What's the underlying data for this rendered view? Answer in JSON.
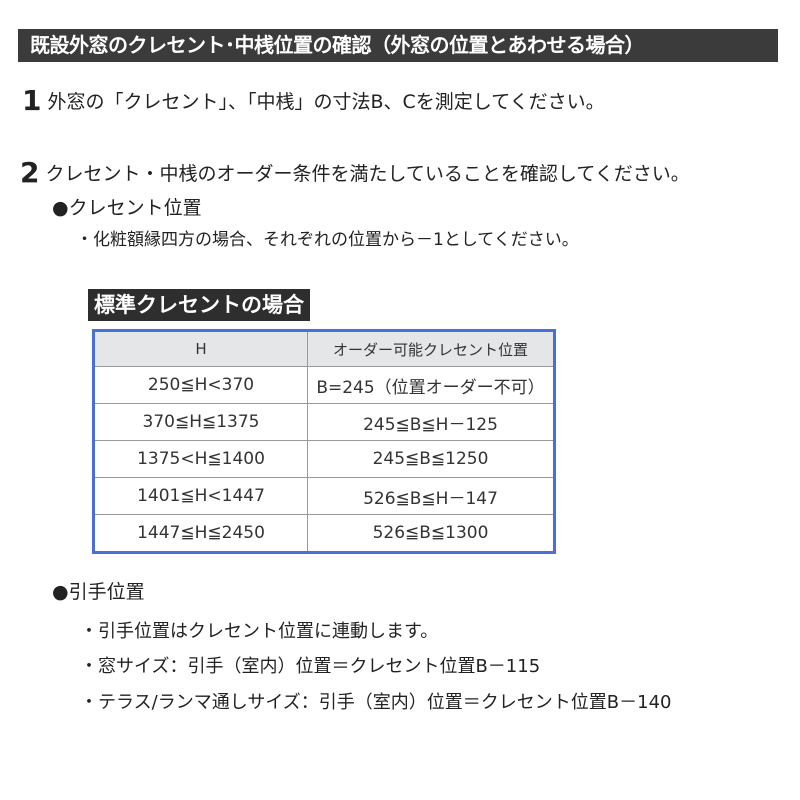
{
  "title": "既設外窓のクレセント･中桟位置の確認（外窓の位置とあわせる場合）",
  "steps": [
    {
      "number": "1",
      "text": "外窓の「クレセント」、「中桟」の寸法B、Cを測定してください。"
    },
    {
      "number": "2",
      "text": "クレセント・中桟のオーダー条件を満たしていることを確認してください。"
    }
  ],
  "crescent_section": {
    "heading": "●クレセント位置",
    "note": "・化粧額縁四方の場合、それぞれの位置から－1としてください。",
    "table_label": "標準クレセントの場合",
    "table": {
      "headers": [
        "H",
        "オーダー可能クレセント位置"
      ],
      "rows": [
        [
          "250≦H<370",
          "B=245（位置オーダー不可）"
        ],
        [
          "370≦H≦1375",
          "245≦B≦H－125"
        ],
        [
          "1375<H≦1400",
          "245≦B≦1250"
        ],
        [
          "1401≦H<1447",
          "526≦B≦H－147"
        ],
        [
          "1447≦H≦2450",
          "526≦B≦1300"
        ]
      ]
    }
  },
  "handle_section": {
    "heading": "●引手位置",
    "items": [
      "・引手位置はクレセント位置に連動します。",
      "・窓サイズ：引手（室内）位置＝クレセント位置B－115",
      "・テラス/ランマ通しサイズ：引手（室内）位置＝クレセント位置B－140"
    ]
  },
  "colors": {
    "title_bar": "#3b3b3b",
    "table_border": "#4a6fd6",
    "header_bg": "#e4e6e8"
  }
}
